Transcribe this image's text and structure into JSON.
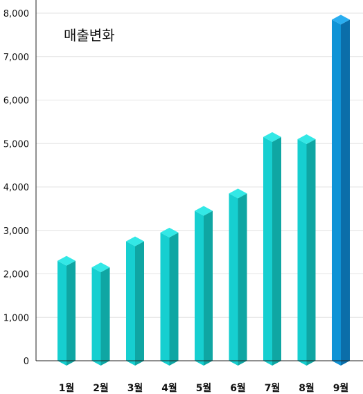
{
  "chart_data": {
    "type": "bar",
    "title": "매출변화",
    "categories": [
      "1월",
      "2월",
      "3월",
      "4월",
      "5월",
      "6월",
      "7월",
      "8월",
      "9월"
    ],
    "values": [
      2300,
      2150,
      2750,
      2950,
      3450,
      3850,
      5150,
      5100,
      7850
    ],
    "ylim": [
      0,
      8000
    ],
    "y_ticks": [
      "0",
      "1,000",
      "2,000",
      "3,000",
      "4,000",
      "5,000",
      "6,000",
      "7,000",
      "8,000"
    ],
    "grid": true,
    "highlight_index": 8,
    "colors": {
      "bar_front": "#16cfd0",
      "bar_side": "#0fa6a3",
      "bar_top": "#33e8e6",
      "highlight_front": "#0f93d6",
      "highlight_side": "#0b6ea9",
      "highlight_top": "#2aaef0",
      "grid": "#e3e3e3",
      "axis": "#222222"
    }
  }
}
